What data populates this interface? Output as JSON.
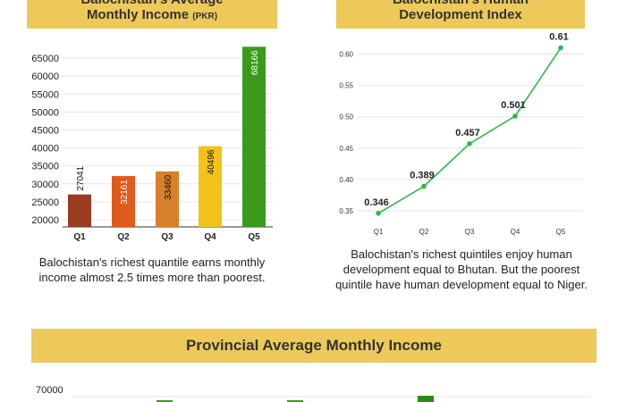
{
  "income_panel": {
    "title_line1": "Balochistan's Average",
    "title_line2": "Monthly Income",
    "title_unit": "(PKR)",
    "caption": "Balochistan's richest quantile earns monthly income almost 2.5 times more than poorest."
  },
  "hdi_panel": {
    "title_line1": "Balochistan's Human",
    "title_line2": "Development Index",
    "caption": "Balochistan's richest quintiles enjoy human development equal to Bhutan. But the poorest quintile have human development equal to Niger."
  },
  "provincial_panel": {
    "title": "Provincial Average Monthly Income"
  },
  "colors": {
    "banner": "#edc95a",
    "bars": [
      "#9a3b22",
      "#e05a1c",
      "#d9802a",
      "#f2c21b",
      "#3a9a1a"
    ],
    "bar_label_colors": [
      "#111111",
      "#ffffff",
      "#111111",
      "#111111",
      "#ffffff"
    ],
    "line": "#2fb84a"
  },
  "chart_data": [
    {
      "type": "bar",
      "categories": [
        "Q1",
        "Q2",
        "Q3",
        "Q4",
        "Q5"
      ],
      "values": [
        27041,
        32161,
        33460,
        40496,
        68166
      ],
      "yticks": [
        20000,
        25000,
        30000,
        35000,
        40000,
        45000,
        50000,
        55000,
        60000,
        65000
      ],
      "ylim": [
        18000,
        67500
      ],
      "grid": true
    },
    {
      "type": "line",
      "x": [
        "Q1",
        "Q2",
        "Q3",
        "Q4",
        "Q5"
      ],
      "values": [
        0.346,
        0.389,
        0.457,
        0.501,
        0.61
      ],
      "value_labels": [
        "0.346",
        "0.389",
        "0.457",
        "0.501",
        "0.61"
      ],
      "yticks": [
        "0.35",
        "0.40",
        "0.45",
        "0.50",
        "0.55",
        "0.60"
      ],
      "ylim": [
        0.33,
        0.615
      ],
      "grid": true
    },
    {
      "type": "bar",
      "yticks": [
        70000
      ],
      "grid": true
    }
  ]
}
